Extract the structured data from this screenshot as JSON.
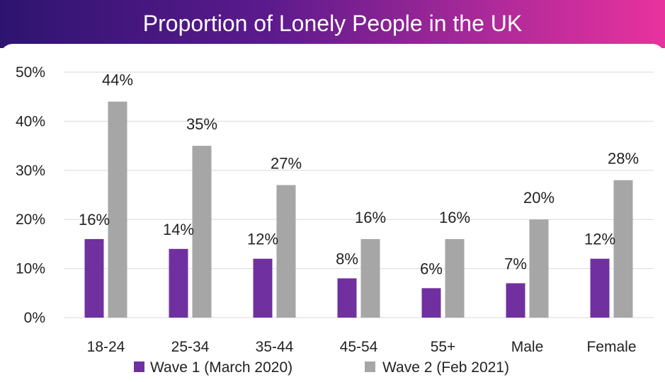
{
  "header": {
    "title": "Proportion of Lonely People in the UK"
  },
  "colors": {
    "wave1": "#7030a0",
    "wave2": "#a6a6a6",
    "grid": "#d9d9d9"
  },
  "chart_data": {
    "type": "bar",
    "title": "Proportion of Lonely People in the UK",
    "categories": [
      "18-24",
      "25-34",
      "35-44",
      "45-54",
      "55+",
      "Male",
      "Female"
    ],
    "series": [
      {
        "name": "Wave 1 (March 2020)",
        "values": [
          16,
          14,
          12,
          8,
          6,
          7,
          12
        ],
        "labels": [
          "16%",
          "14%",
          "12%",
          "8%",
          "6%",
          "7%",
          "12%"
        ]
      },
      {
        "name": "Wave 2 (Feb 2021)",
        "values": [
          44,
          35,
          27,
          16,
          16,
          20,
          28
        ],
        "labels": [
          "44%",
          "35%",
          "27%",
          "16%",
          "16%",
          "20%",
          "28%"
        ]
      }
    ],
    "y_ticks": [
      "0%",
      "10%",
      "20%",
      "30%",
      "40%",
      "50%"
    ],
    "ylim": [
      0,
      50
    ],
    "grid": true,
    "legend_position": "bottom"
  }
}
